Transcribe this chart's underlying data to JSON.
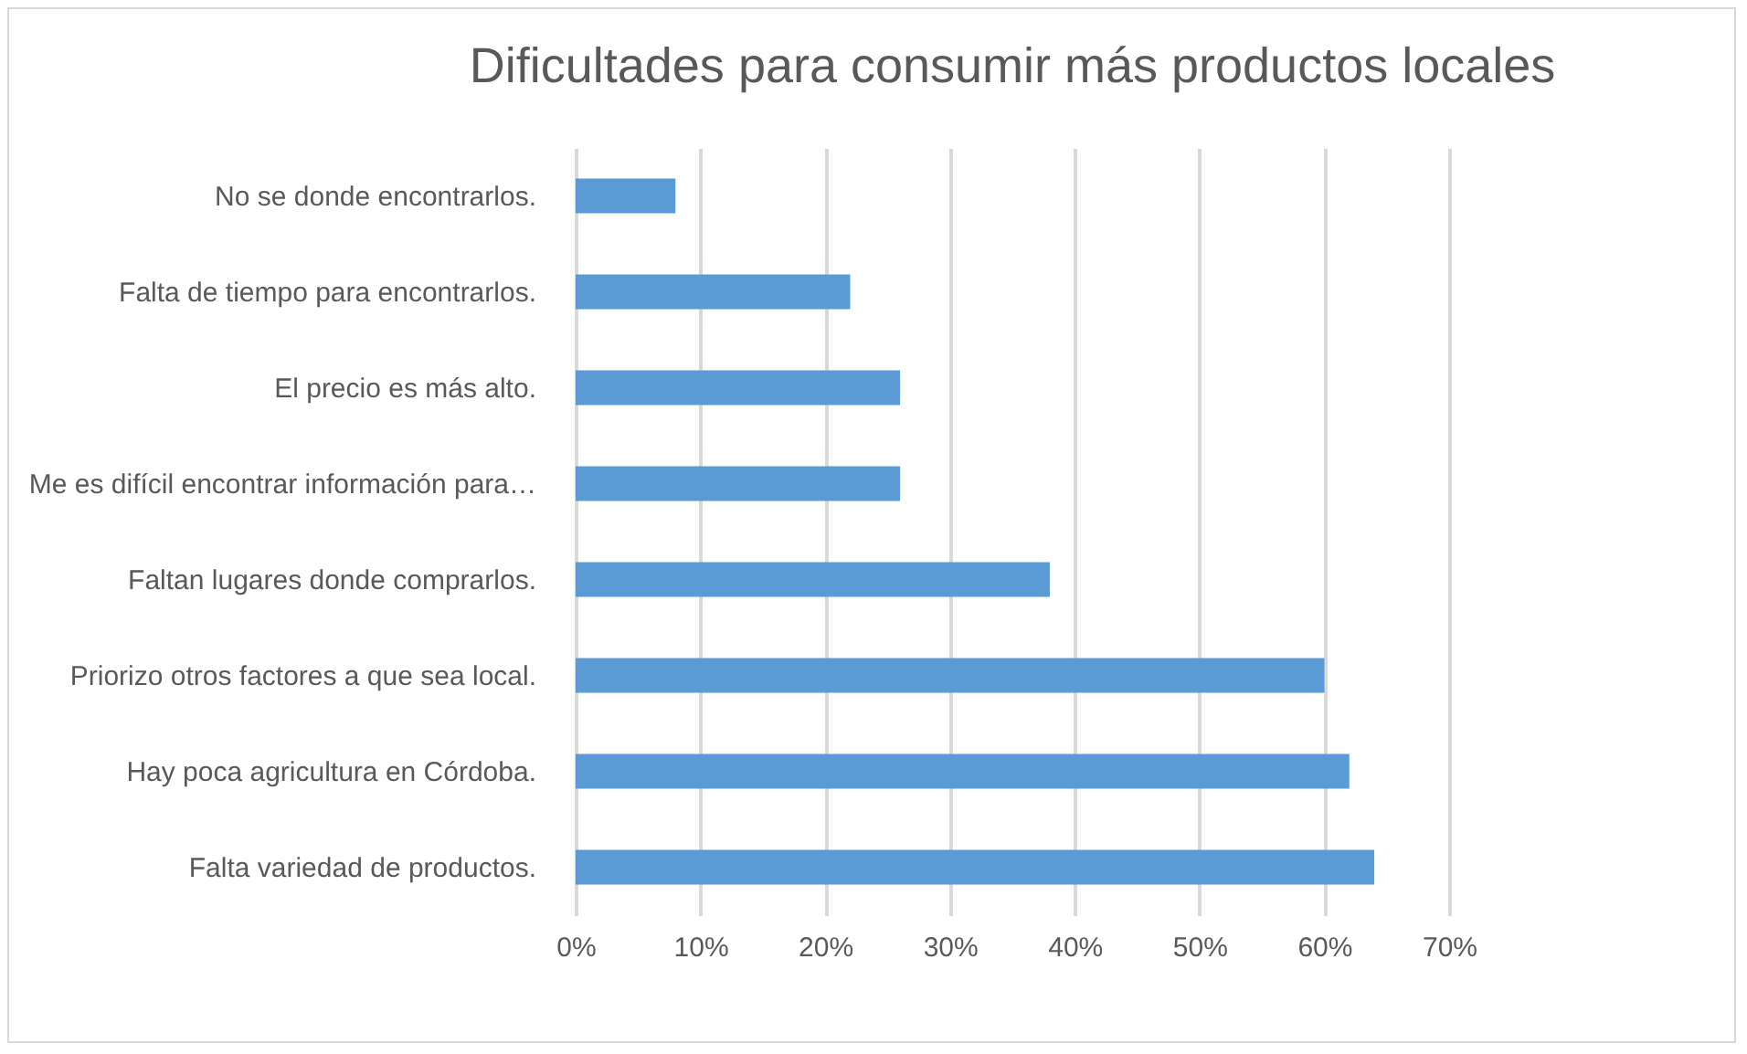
{
  "chart_data": {
    "type": "bar",
    "orientation": "horizontal",
    "title": "Dificultades para consumir más productos locales",
    "categories": [
      "No se donde encontrarlos.",
      "Falta de tiempo para encontrarlos.",
      "El precio es más alto.",
      "Me es difícil encontrar información para…",
      "Faltan lugares donde comprarlos.",
      "Priorizo otros factores a que sea local.",
      "Hay poca agricultura en Córdoba.",
      "Falta variedad de productos."
    ],
    "values": [
      8,
      22,
      26,
      26,
      38,
      60,
      62,
      64
    ],
    "color": "#5b9bd5",
    "xlim": [
      0,
      70
    ],
    "xticks": [
      {
        "value": 0,
        "label": "0%"
      },
      {
        "value": 10,
        "label": "10%"
      },
      {
        "value": 20,
        "label": "20%"
      },
      {
        "value": 30,
        "label": "30%"
      },
      {
        "value": 40,
        "label": "40%"
      },
      {
        "value": 50,
        "label": "50%"
      },
      {
        "value": 60,
        "label": "60%"
      },
      {
        "value": 70,
        "label": "70%"
      }
    ],
    "grid": "x"
  }
}
